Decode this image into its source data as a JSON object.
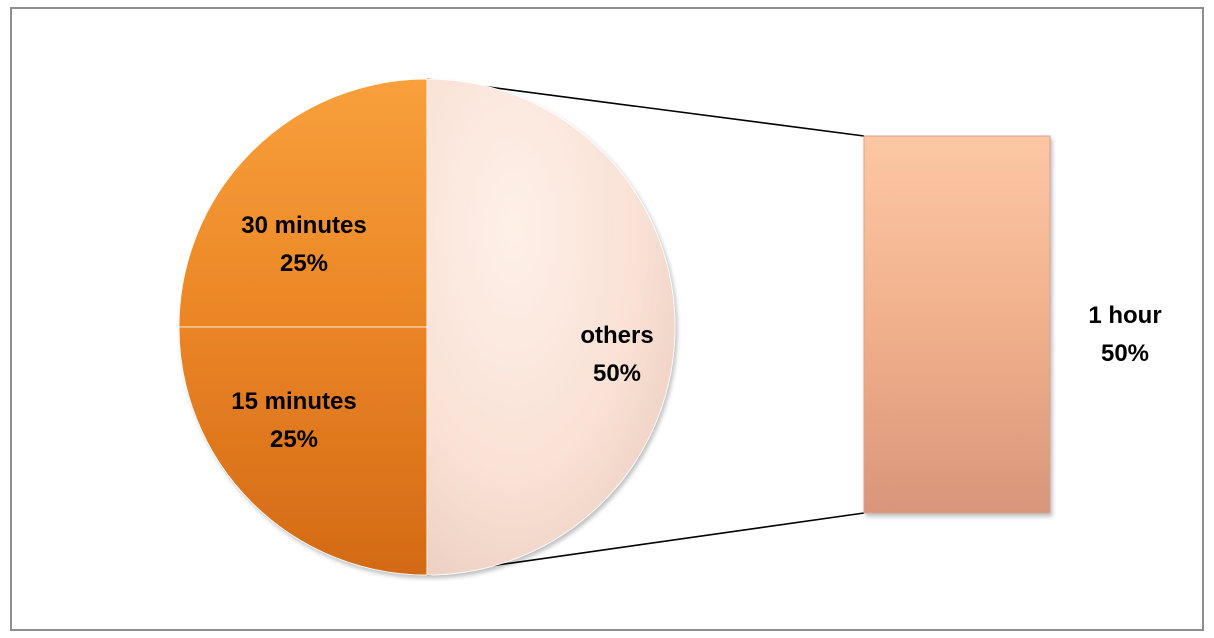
{
  "chart_data": {
    "type": "pie",
    "subtype": "bar-of-pie",
    "title": "",
    "slices": [
      {
        "category": "30 minutes",
        "percent_label": "25%",
        "value": 25,
        "color": "#f28c28"
      },
      {
        "category": "15 minutes",
        "percent_label": "25%",
        "value": 25,
        "color": "#e07a1f"
      },
      {
        "category": "others",
        "percent_label": "50%",
        "value": 50,
        "color": "#fbe3d6"
      }
    ],
    "secondary_bar": {
      "segments": [
        {
          "category": "1 hour",
          "percent_label": "50%",
          "value": 50,
          "color": "#f4b08a"
        }
      ]
    },
    "legend": "none",
    "colors": {
      "border": "#8e8e8e",
      "connector": "#000000",
      "slice_orange_top": "#f8a03c",
      "slice_orange_bottom": "#d96f17",
      "others_light": "#fde9df",
      "others_dark": "#ecd0c3",
      "bar_top": "#fbc4a0",
      "bar_bottom": "#d9957a"
    }
  }
}
